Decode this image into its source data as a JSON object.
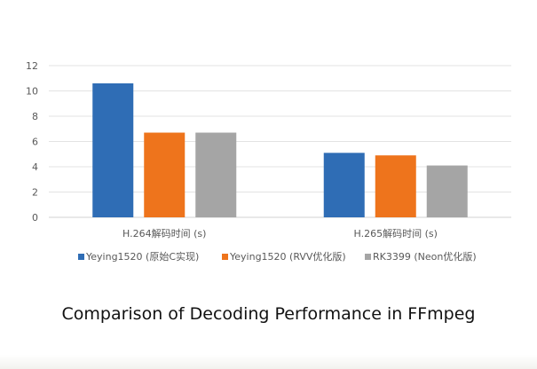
{
  "chart_data": {
    "type": "bar",
    "categories": [
      "H.264解码时间 (s)",
      "H.265解码时间 (s)"
    ],
    "series": [
      {
        "name": "Yeying1520 (原始C实现)",
        "values": [
          10.6,
          5.1
        ],
        "color": "#2f6db5"
      },
      {
        "name": "Yeying1520 (RVV优化版)",
        "values": [
          6.7,
          4.9
        ],
        "color": "#ee741c"
      },
      {
        "name": "RK3399 (Neon优化版)",
        "values": [
          6.7,
          4.1
        ],
        "color": "#a5a5a5"
      }
    ],
    "yticks": [
      "0",
      "2",
      "4",
      "6",
      "8",
      "10",
      "12"
    ],
    "ylim": [
      0,
      12
    ],
    "grid": true,
    "legend_position": "bottom"
  },
  "caption": "Comparison of Decoding Performance in FFmpeg"
}
